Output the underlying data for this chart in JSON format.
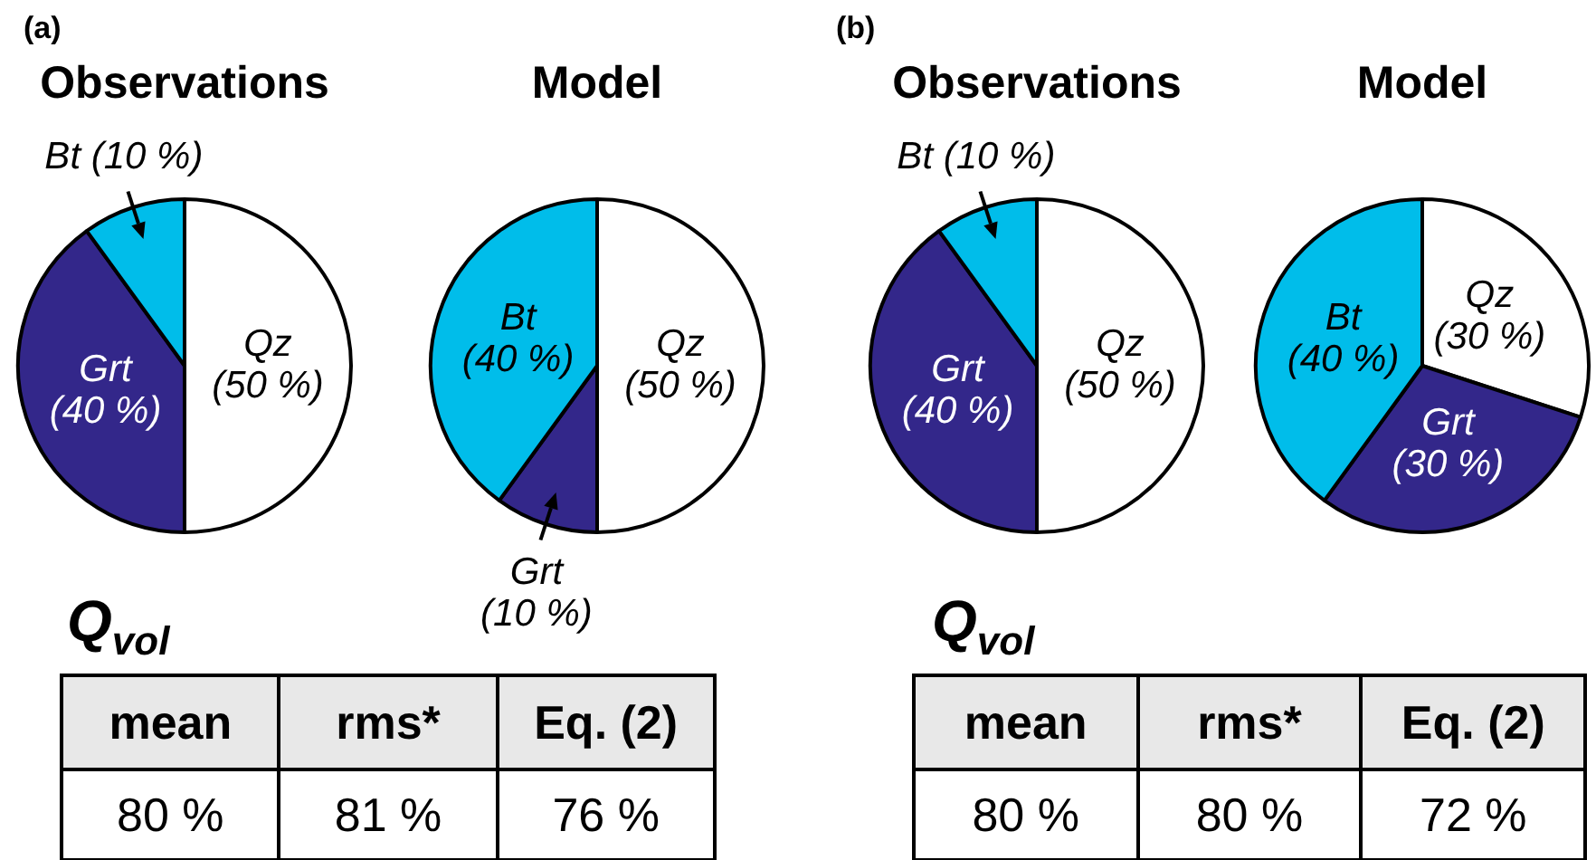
{
  "chart_data": [
    {
      "type": "pie",
      "title": "Observations",
      "annotations": [
        "(a)"
      ],
      "categories": [
        "Qz",
        "Grt",
        "Bt"
      ],
      "values": [
        50,
        40,
        10
      ],
      "colors": [
        "#ffffff",
        "#33278a",
        "#00bdea"
      ],
      "value_labels": [
        "(50 %)",
        "(40 %)",
        "(10 %)"
      ]
    },
    {
      "type": "pie",
      "title": "Model",
      "categories": [
        "Qz",
        "Grt",
        "Bt"
      ],
      "values": [
        50,
        10,
        40
      ],
      "colors": [
        "#ffffff",
        "#33278a",
        "#00bdea"
      ],
      "value_labels": [
        "(50 %)",
        "(10 %)",
        "(40 %)"
      ]
    },
    {
      "type": "other",
      "title": "Q$_{vol}$",
      "categories": [
        "mean",
        "rms*",
        "Eq. (2)"
      ],
      "value_labels": [
        "80 %",
        "81 %",
        "76 %"
      ]
    },
    {
      "type": "pie",
      "title": "Observations",
      "annotations": [
        "(b)"
      ],
      "categories": [
        "Qz",
        "Grt",
        "Bt"
      ],
      "values": [
        50,
        40,
        10
      ],
      "colors": [
        "#ffffff",
        "#33278a",
        "#00bdea"
      ],
      "value_labels": [
        "(50 %)",
        "(40 %)",
        "(10 %)"
      ]
    },
    {
      "type": "pie",
      "title": "Model",
      "categories": [
        "Qz",
        "Grt",
        "Bt"
      ],
      "values": [
        30,
        30,
        40
      ],
      "colors": [
        "#ffffff",
        "#33278a",
        "#00bdea"
      ],
      "value_labels": [
        "(30 %)",
        "(30 %)",
        "(40 %)"
      ]
    },
    {
      "type": "other",
      "title": "Q$_{vol}$",
      "categories": [
        "mean",
        "rms*",
        "Eq. (2)"
      ],
      "value_labels": [
        "80 %",
        "80 %",
        "72 %"
      ]
    }
  ]
}
